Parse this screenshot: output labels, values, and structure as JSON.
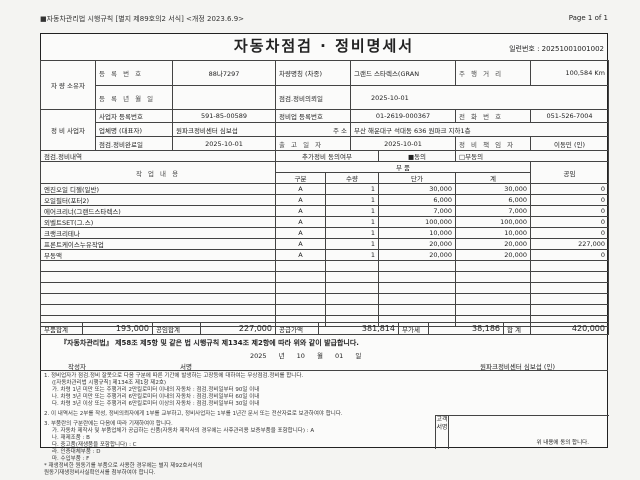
{
  "header": {
    "form_ref": "■자동차관리법 시행규칙 [별지 제89호의2 서식] <개정 2023.6.9>",
    "page": "Page 1 of 1"
  },
  "title": "자동차점검 · 정비명세서",
  "serial": "일련번호 : 20251001001002",
  "vehicle": {
    "section": "자 량 소유자",
    "reg_no_label": "등 록 번 호",
    "reg_no": "88나7297",
    "name_label": "차량명칭 (차종)",
    "name": "그랜드 스타렉스(GRAN",
    "mileage_label": "주 행 거 리",
    "mileage": "100,584 Km",
    "reg_date_label": "등 록 년 월 일",
    "reg_date": "",
    "request_label": "점검.정비의뢰일",
    "request_date": "2025-10-01"
  },
  "business": {
    "section": "정 비 사업자",
    "biz_no_label": "사업자 등록번호",
    "biz_no": "591-85-00589",
    "shop_no_label": "정비업 등록번호",
    "shop_no": "01-2619-000367",
    "phone_label": "전 화 번 호",
    "phone": "051-526-7004",
    "company_label": "업체명 (대표자)",
    "company": "원파크정비센터 심보섭",
    "addr_label": "주 소",
    "addr": "부산 해운대구 석대동 636 원파크 지하1층",
    "done_label": "점검.정비완료일",
    "done_date": "2025-10-01",
    "out_label": "출 고 일 자",
    "out_date": "2025-10-01",
    "manager_label": "정 비 책 임 자",
    "manager": "이동민 (인)"
  },
  "work": {
    "section": "점검.정비내역",
    "consent_label": "추가정비 동의여부",
    "agree": "■동의",
    "disagree": "□부동의",
    "col_work": "작 업 내 용",
    "col_parts": "부 품",
    "col_type": "구분",
    "col_qty": "수량",
    "col_price": "단가",
    "col_sum": "계",
    "col_labor": "공임",
    "items": [
      {
        "name": "엔진오일 디젤(일반)",
        "type": "A",
        "qty": "1",
        "price": "30,000",
        "sum": "30,000",
        "labor": "0"
      },
      {
        "name": "오일필터(포터2)",
        "type": "A",
        "qty": "1",
        "price": "6,000",
        "sum": "6,000",
        "labor": "0"
      },
      {
        "name": "에어크리너(그랜드스타렉스)",
        "type": "A",
        "qty": "1",
        "price": "7,000",
        "sum": "7,000",
        "labor": "0"
      },
      {
        "name": "외벨트SET(그.스)",
        "type": "A",
        "qty": "1",
        "price": "100,000",
        "sum": "100,000",
        "labor": "0"
      },
      {
        "name": "크랭크리테나",
        "type": "A",
        "qty": "1",
        "price": "10,000",
        "sum": "10,000",
        "labor": "0"
      },
      {
        "name": "프론트케이스누유작업",
        "type": "A",
        "qty": "1",
        "price": "20,000",
        "sum": "20,000",
        "labor": "227,000"
      },
      {
        "name": "부동액",
        "type": "A",
        "qty": "1",
        "price": "20,000",
        "sum": "20,000",
        "labor": "0"
      }
    ]
  },
  "totals": {
    "parts_label": "부품합계",
    "parts": "193,000",
    "labor_label": "공임합계",
    "labor": "227,000",
    "supply_label": "공급가액",
    "supply": "381,814",
    "vat_label": "부가세",
    "vat": "38,186",
    "total_label": "합 계",
    "total": "420,000"
  },
  "statement": {
    "text": "『자동차관리법』 제58조 제5항 및 같은 법 시행규칙 제134조 제2항에 따라 위와 같이 발급합니다.",
    "date": "2025 년 10 월 01 일",
    "writer_label": "작성자",
    "sign_label": "서명",
    "issuer": "원파크정비센터 심보섭 (인)"
  },
  "notes": [
    "1. 정비업자가 점검.정비 잘못으로 다음 구분에 따른 기간에 발생하는 고장등에 대하여는 무상점검.정비를 합니다.",
    "([자동차관리법 시행규칙] 제134조 제1항 제2호)",
    "가. 차령 1년 미만 또는 주행거리 2만킬로미터 이내의 자동차 : 점검.정비일부터 90일 이내",
    "나. 차령 3년 미만 또는 주행거리 6만킬로미터 이내의 자동차 : 점검.정비일부터 60일 이내",
    "다. 차령 3년 이상 또는 주행거리 6만킬로미터 이상의 자동차 : 점검.정비일부터 30일 이내",
    "2. 이 내역서는 2부를 작성, 정비의뢰자에게 1부를 교부하고, 정비사업자는 1부를 1년간 문서 또는 전산자료로 보관하여야 합니다.",
    "3. 부품란의 구분란에는 다음에 따라 기재하여야 합니다.",
    "가. 자동차 제작사 및 부품업체가 공급하는 신품(자동차 제작사의 경우에는 사후관리용 보증부품을 포함합니다) : A",
    "나. 재제조품 : B",
    "다. 중고품(재생품을 포함합니다) : C",
    "라. 인증대체부품 : D",
    "마. 수입부품 : F",
    "* 재생정비한 원동기를 부품으로 사용한 경우에는 별지 제92호서식의",
    "원동기재생정비사실확인서를 첨부하여야 합니다."
  ],
  "signature": {
    "label": "고객서명",
    "text": "위 내용에 동의 합니다."
  }
}
